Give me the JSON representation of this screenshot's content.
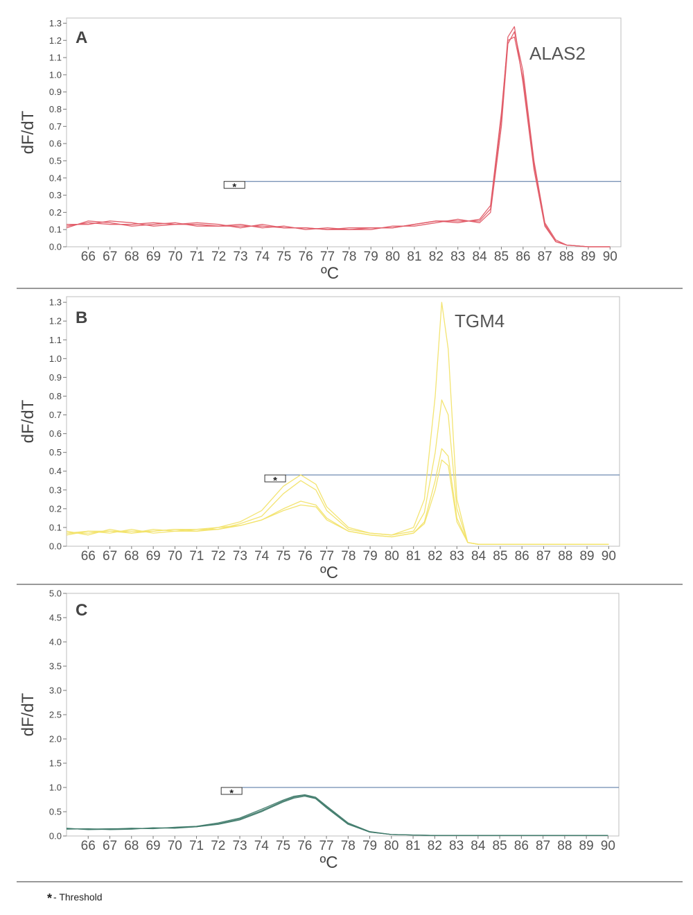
{
  "footnote": {
    "symbol": "*",
    "text": "- Threshold"
  },
  "chart_data": [
    {
      "type": "line",
      "panel_label": "A",
      "annotation": "ALAS2",
      "xlabel": "ºC",
      "ylabel": "dF/dT",
      "xlim": [
        65,
        90.5
      ],
      "ylim": [
        0,
        1.33
      ],
      "x_ticks": [
        66,
        67,
        68,
        69,
        70,
        71,
        72,
        73,
        74,
        75,
        76,
        77,
        78,
        79,
        80,
        81,
        82,
        83,
        84,
        85,
        86,
        87,
        88,
        89,
        90
      ],
      "y_ticks": [
        "0.0",
        "0.1",
        "0.2",
        "0.3",
        "0.4",
        "0.5",
        "0.6",
        "0.7",
        "0.8",
        "0.9",
        "1.0",
        "1.1",
        "1.2",
        "1.3"
      ],
      "grid": false,
      "threshold": {
        "value": 0.38,
        "x_start": 73.2,
        "marker": "*"
      },
      "line_color": "#e05a66",
      "series": [
        {
          "x": [
            65,
            66,
            67,
            68,
            69,
            70,
            71,
            72,
            73,
            74,
            75,
            76,
            77,
            78,
            79,
            80,
            81,
            82,
            83,
            84,
            84.5,
            85,
            85.3,
            85.6,
            86,
            86.5,
            87,
            87.5,
            88,
            89,
            90
          ],
          "values": [
            0.12,
            0.14,
            0.13,
            0.13,
            0.14,
            0.13,
            0.13,
            0.12,
            0.12,
            0.12,
            0.11,
            0.11,
            0.1,
            0.1,
            0.11,
            0.11,
            0.13,
            0.15,
            0.15,
            0.15,
            0.22,
            0.75,
            1.22,
            1.28,
            0.95,
            0.45,
            0.12,
            0.03,
            0.01,
            0.0,
            0.0
          ]
        },
        {
          "x": [
            65,
            66,
            67,
            68,
            69,
            70,
            71,
            72,
            73,
            74,
            75,
            76,
            77,
            78,
            79,
            80,
            81,
            82,
            83,
            84,
            84.5,
            85,
            85.3,
            85.6,
            86,
            86.5,
            87,
            87.5,
            88,
            89,
            90
          ],
          "values": [
            0.11,
            0.15,
            0.14,
            0.12,
            0.13,
            0.14,
            0.12,
            0.12,
            0.13,
            0.11,
            0.12,
            0.1,
            0.11,
            0.1,
            0.1,
            0.12,
            0.12,
            0.14,
            0.16,
            0.14,
            0.2,
            0.7,
            1.18,
            1.25,
            1.02,
            0.5,
            0.14,
            0.04,
            0.01,
            0.0,
            0.0
          ]
        },
        {
          "x": [
            65,
            66,
            67,
            68,
            69,
            70,
            71,
            72,
            73,
            74,
            75,
            76,
            77,
            78,
            79,
            80,
            81,
            82,
            83,
            84,
            84.5,
            85,
            85.3,
            85.6,
            86,
            86.5,
            87,
            87.5,
            88,
            89,
            90
          ],
          "values": [
            0.13,
            0.13,
            0.15,
            0.14,
            0.12,
            0.13,
            0.14,
            0.13,
            0.11,
            0.13,
            0.11,
            0.11,
            0.1,
            0.11,
            0.11,
            0.11,
            0.13,
            0.15,
            0.14,
            0.16,
            0.24,
            0.78,
            1.2,
            1.22,
            0.98,
            0.48,
            0.13,
            0.03,
            0.01,
            0.0,
            0.0
          ]
        }
      ]
    },
    {
      "type": "line",
      "panel_label": "B",
      "annotation": "TGM4",
      "xlabel": "ºC",
      "ylabel": "dF/dT",
      "xlim": [
        65,
        90.5
      ],
      "ylim": [
        0,
        1.33
      ],
      "x_ticks": [
        66,
        67,
        68,
        69,
        70,
        71,
        72,
        73,
        74,
        75,
        76,
        77,
        78,
        79,
        80,
        81,
        82,
        83,
        84,
        85,
        86,
        87,
        88,
        89,
        90
      ],
      "y_ticks": [
        "0.0",
        "0.1",
        "0.2",
        "0.3",
        "0.4",
        "0.5",
        "0.6",
        "0.7",
        "0.8",
        "0.9",
        "1.0",
        "1.1",
        "1.2",
        "1.3"
      ],
      "grid": false,
      "threshold": {
        "value": 0.38,
        "x_start": 75.1,
        "marker": "*"
      },
      "line_color": "#f2e36a",
      "series": [
        {
          "x": [
            65,
            66,
            67,
            68,
            69,
            70,
            71,
            72,
            73,
            74,
            75,
            75.8,
            76.5,
            77,
            78,
            79,
            80,
            81,
            81.5,
            82,
            82.3,
            82.6,
            83,
            83.5,
            84,
            85,
            86,
            87,
            88,
            89,
            90
          ],
          "values": [
            0.07,
            0.07,
            0.08,
            0.08,
            0.08,
            0.09,
            0.09,
            0.1,
            0.13,
            0.19,
            0.32,
            0.38,
            0.33,
            0.21,
            0.1,
            0.07,
            0.06,
            0.1,
            0.25,
            0.8,
            1.3,
            1.05,
            0.25,
            0.02,
            0.01,
            0.01,
            0.01,
            0.01,
            0.01,
            0.01,
            0.01
          ]
        },
        {
          "x": [
            65,
            66,
            67,
            68,
            69,
            70,
            71,
            72,
            73,
            74,
            75,
            75.8,
            76.5,
            77,
            78,
            79,
            80,
            81,
            81.5,
            82,
            82.3,
            82.6,
            83,
            83.5,
            84,
            85,
            86,
            87,
            88,
            89,
            90
          ],
          "values": [
            0.06,
            0.08,
            0.07,
            0.09,
            0.07,
            0.08,
            0.09,
            0.09,
            0.12,
            0.16,
            0.28,
            0.35,
            0.3,
            0.19,
            0.09,
            0.07,
            0.06,
            0.08,
            0.18,
            0.5,
            0.78,
            0.7,
            0.2,
            0.02,
            0.01,
            0.01,
            0.01,
            0.01,
            0.01,
            0.01,
            0.01
          ]
        },
        {
          "x": [
            65,
            66,
            67,
            68,
            69,
            70,
            71,
            72,
            73,
            74,
            75,
            75.8,
            76.5,
            77,
            78,
            79,
            80,
            81,
            81.5,
            82,
            82.3,
            82.6,
            83,
            83.5,
            84,
            85,
            86,
            87,
            88,
            89,
            90
          ],
          "values": [
            0.08,
            0.06,
            0.09,
            0.07,
            0.09,
            0.08,
            0.08,
            0.1,
            0.11,
            0.14,
            0.2,
            0.24,
            0.22,
            0.15,
            0.08,
            0.06,
            0.05,
            0.07,
            0.13,
            0.35,
            0.52,
            0.48,
            0.15,
            0.02,
            0.01,
            0.01,
            0.01,
            0.01,
            0.01,
            0.01,
            0.01
          ]
        },
        {
          "x": [
            65,
            66,
            67,
            68,
            69,
            70,
            71,
            72,
            73,
            74,
            75,
            75.8,
            76.5,
            77,
            78,
            79,
            80,
            81,
            81.5,
            82,
            82.3,
            82.6,
            83,
            83.5,
            84,
            85,
            86,
            87,
            88,
            89,
            90
          ],
          "values": [
            0.07,
            0.08,
            0.08,
            0.07,
            0.08,
            0.09,
            0.08,
            0.09,
            0.11,
            0.14,
            0.19,
            0.22,
            0.21,
            0.14,
            0.08,
            0.06,
            0.05,
            0.07,
            0.12,
            0.3,
            0.46,
            0.43,
            0.13,
            0.02,
            0.01,
            0.01,
            0.01,
            0.01,
            0.01,
            0.01,
            0.01
          ]
        }
      ]
    },
    {
      "type": "line",
      "panel_label": "C",
      "annotation": "",
      "xlabel": "ºC",
      "ylabel": "dF/dT",
      "xlim": [
        65,
        90.5
      ],
      "ylim": [
        0,
        5.0
      ],
      "x_ticks": [
        66,
        67,
        68,
        69,
        70,
        71,
        72,
        73,
        74,
        75,
        76,
        77,
        78,
        79,
        80,
        81,
        82,
        83,
        84,
        85,
        86,
        87,
        88,
        89,
        90
      ],
      "y_ticks": [
        "0.0",
        "0.5",
        "1.0",
        "1.5",
        "2.0",
        "2.5",
        "3.0",
        "3.5",
        "4.0",
        "4.5",
        "5.0"
      ],
      "grid": false,
      "threshold": {
        "value": 1.0,
        "x_start": 73.1,
        "marker": "*"
      },
      "line_color": "#3f7a6a",
      "series": [
        {
          "x": [
            65,
            66,
            67,
            68,
            69,
            70,
            71,
            72,
            73,
            74,
            75,
            75.5,
            76,
            76.5,
            77,
            78,
            79,
            80,
            81,
            82,
            83,
            84,
            85,
            86,
            87,
            88,
            89,
            90
          ],
          "values": [
            0.15,
            0.14,
            0.15,
            0.15,
            0.16,
            0.17,
            0.19,
            0.25,
            0.35,
            0.52,
            0.72,
            0.8,
            0.84,
            0.78,
            0.6,
            0.25,
            0.08,
            0.03,
            0.02,
            0.01,
            0.01,
            0.01,
            0.01,
            0.01,
            0.01,
            0.01,
            0.01,
            0.01
          ]
        },
        {
          "x": [
            65,
            66,
            67,
            68,
            69,
            70,
            71,
            72,
            73,
            74,
            75,
            75.5,
            76,
            76.5,
            77,
            78,
            79,
            80,
            81,
            82,
            83,
            84,
            85,
            86,
            87,
            88,
            89,
            90
          ],
          "values": [
            0.16,
            0.13,
            0.14,
            0.16,
            0.15,
            0.18,
            0.2,
            0.27,
            0.37,
            0.55,
            0.74,
            0.82,
            0.85,
            0.8,
            0.62,
            0.27,
            0.09,
            0.03,
            0.02,
            0.01,
            0.01,
            0.01,
            0.01,
            0.01,
            0.01,
            0.01,
            0.01,
            0.01
          ]
        },
        {
          "x": [
            65,
            66,
            67,
            68,
            69,
            70,
            71,
            72,
            73,
            74,
            75,
            75.5,
            76,
            76.5,
            77,
            78,
            79,
            80,
            81,
            82,
            83,
            84,
            85,
            86,
            87,
            88,
            89,
            90
          ],
          "values": [
            0.14,
            0.15,
            0.13,
            0.14,
            0.17,
            0.16,
            0.19,
            0.24,
            0.33,
            0.5,
            0.7,
            0.78,
            0.82,
            0.77,
            0.58,
            0.24,
            0.08,
            0.03,
            0.02,
            0.01,
            0.01,
            0.01,
            0.01,
            0.01,
            0.01,
            0.01,
            0.01,
            0.01
          ]
        }
      ]
    }
  ]
}
